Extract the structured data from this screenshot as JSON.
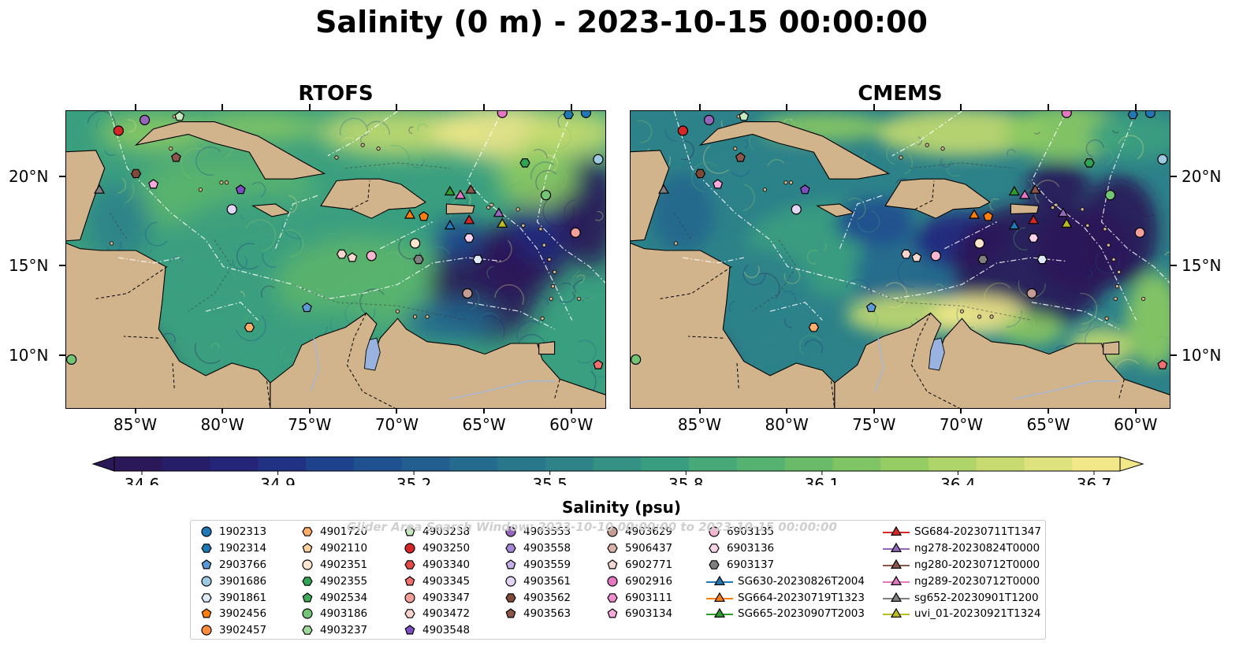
{
  "title": "Salinity (0 m) - 2023-10-15 00:00:00",
  "panels": [
    {
      "title": "RTOFS"
    },
    {
      "title": "CMEMS"
    }
  ],
  "window_note": "Glider Area Search Window: 2023-10-10 00:00:00 to 2023-10-15 00:00:00",
  "chart_data": {
    "type": "heatmap",
    "title": "Salinity (0 m) - 2023-10-15 00:00:00",
    "x_ticks": [
      "85°W",
      "80°W",
      "75°W",
      "70°W",
      "65°W",
      "60°W"
    ],
    "y_ticks": [
      "20°N",
      "15°N",
      "10°N"
    ],
    "x_tick_values": [
      -85,
      -80,
      -75,
      -70,
      -65,
      -60
    ],
    "y_tick_values": [
      20,
      15,
      10
    ],
    "xlim": [
      -89,
      -58
    ],
    "ylim": [
      7,
      23.7
    ],
    "grid": false,
    "colorbar": {
      "label": "Salinity (psu)",
      "ticks": [
        "34.6",
        "34.9",
        "35.2",
        "35.5",
        "35.8",
        "36.1",
        "36.4",
        "36.7"
      ],
      "range": [
        34.6,
        36.7
      ],
      "colormap_stops": [
        "#2a1858",
        "#23267d",
        "#1d4990",
        "#24678e",
        "#2d8289",
        "#3a9f7f",
        "#5bb56d",
        "#8bc962",
        "#c3da6e",
        "#f2e88a"
      ]
    },
    "colors": {
      "land": "#d2b48c",
      "lake": "#99b3e0"
    },
    "legend_placement": "bottom",
    "legend": [
      {
        "name": "1902313",
        "marker": "circle",
        "color": "#1f77b4"
      },
      {
        "name": "1902314",
        "marker": "hexagon",
        "color": "#1f77b4"
      },
      {
        "name": "2903766",
        "marker": "pentagon",
        "color": "#5a9bd5"
      },
      {
        "name": "3901686",
        "marker": "circle",
        "color": "#9ecae1"
      },
      {
        "name": "3901861",
        "marker": "hexagon",
        "color": "#deebf7"
      },
      {
        "name": "3902456",
        "marker": "pentagon",
        "color": "#ff7f0e"
      },
      {
        "name": "3902457",
        "marker": "circle",
        "color": "#fd8d3c"
      },
      {
        "name": "4901720",
        "marker": "hexagon",
        "color": "#fdae6b"
      },
      {
        "name": "4902110",
        "marker": "pentagon",
        "color": "#fdd0a2"
      },
      {
        "name": "4902351",
        "marker": "circle",
        "color": "#fee6ce"
      },
      {
        "name": "4902355",
        "marker": "hexagon",
        "color": "#31a354"
      },
      {
        "name": "4902534",
        "marker": "pentagon",
        "color": "#41ab5d"
      },
      {
        "name": "4903186",
        "marker": "circle",
        "color": "#74c476"
      },
      {
        "name": "4903237",
        "marker": "hexagon",
        "color": "#a1d99b"
      },
      {
        "name": "4903238",
        "marker": "pentagon",
        "color": "#c7e9c0"
      },
      {
        "name": "4903250",
        "marker": "circle",
        "color": "#d62728"
      },
      {
        "name": "4903340",
        "marker": "hexagon",
        "color": "#e34a4a"
      },
      {
        "name": "4903345",
        "marker": "pentagon",
        "color": "#f07070"
      },
      {
        "name": "4903347",
        "marker": "circle",
        "color": "#f4a09a"
      },
      {
        "name": "4903472",
        "marker": "hexagon",
        "color": "#fcd5cf"
      },
      {
        "name": "4903548",
        "marker": "pentagon",
        "color": "#7b4fbf"
      },
      {
        "name": "4903553",
        "marker": "circle",
        "color": "#9467bd"
      },
      {
        "name": "4903558",
        "marker": "hexagon",
        "color": "#a589d6"
      },
      {
        "name": "4903559",
        "marker": "pentagon",
        "color": "#c5b0e8"
      },
      {
        "name": "4903561",
        "marker": "circle",
        "color": "#e2d6f5"
      },
      {
        "name": "4903562",
        "marker": "hexagon",
        "color": "#7f4a3a"
      },
      {
        "name": "4903563",
        "marker": "pentagon",
        "color": "#8c564b"
      },
      {
        "name": "4903629",
        "marker": "circle",
        "color": "#c49c94"
      },
      {
        "name": "5906437",
        "marker": "hexagon",
        "color": "#d9b3a8"
      },
      {
        "name": "6902771",
        "marker": "pentagon",
        "color": "#f7d8d0"
      },
      {
        "name": "6902916",
        "marker": "circle",
        "color": "#e377c2"
      },
      {
        "name": "6903111",
        "marker": "hexagon",
        "color": "#f08ed0"
      },
      {
        "name": "6903134",
        "marker": "pentagon",
        "color": "#f7a8dc"
      },
      {
        "name": "6903135",
        "marker": "circle",
        "color": "#f7b6d2"
      },
      {
        "name": "6903136",
        "marker": "hexagon",
        "color": "#fbd3ea"
      },
      {
        "name": "6903137",
        "marker": "hexagon",
        "color": "#7f7f7f"
      },
      {
        "name": "SG630-20230826T2004",
        "marker": "triangle",
        "color": "#1f77b4"
      },
      {
        "name": "SG664-20230719T1323",
        "marker": "triangle",
        "color": "#ff7f0e"
      },
      {
        "name": "SG665-20230907T2003",
        "marker": "triangle",
        "color": "#2ca02c"
      },
      {
        "name": "SG684-20230711T1347",
        "marker": "triangle",
        "color": "#d62728"
      },
      {
        "name": "ng278-20230824T0000",
        "marker": "triangle",
        "color": "#9467bd"
      },
      {
        "name": "ng280-20230712T0000",
        "marker": "triangle",
        "color": "#8c564b"
      },
      {
        "name": "ng289-20230712T0000",
        "marker": "triangle",
        "color": "#e377c2"
      },
      {
        "name": "sg652-20230901T1200",
        "marker": "triangle",
        "color": "#7f7f7f"
      },
      {
        "name": "uvi_01-20230921T1324",
        "marker": "triangle",
        "color": "#bcbd22"
      }
    ],
    "platforms": [
      {
        "name": "1902313",
        "lon": -59.2,
        "lat": 23.6
      },
      {
        "name": "1902314",
        "lon": -60.2,
        "lat": 23.5
      },
      {
        "name": "3901686",
        "lon": -58.5,
        "lat": 21.0
      },
      {
        "name": "3901861",
        "lon": -65.4,
        "lat": 15.4
      },
      {
        "name": "4903250",
        "lon": -86.0,
        "lat": 22.6
      },
      {
        "name": "4903553",
        "lon": -84.5,
        "lat": 23.2
      },
      {
        "name": "4903238",
        "lon": -82.5,
        "lat": 23.4
      },
      {
        "name": "4902355",
        "lon": -62.7,
        "lat": 20.8
      },
      {
        "name": "4903186",
        "lon": -61.5,
        "lat": 19.0
      },
      {
        "name": "4903563",
        "lon": -82.7,
        "lat": 21.1
      },
      {
        "name": "4903562",
        "lon": -85.0,
        "lat": 20.2
      },
      {
        "name": "6903134",
        "lon": -84.0,
        "lat": 19.6
      },
      {
        "name": "4903548",
        "lon": -79.0,
        "lat": 19.3
      },
      {
        "name": "4903561",
        "lon": -79.5,
        "lat": 18.2
      },
      {
        "name": "6902916",
        "lon": -64.0,
        "lat": 23.6
      },
      {
        "name": "4903345",
        "lon": -58.5,
        "lat": 9.5
      },
      {
        "name": "4903347",
        "lon": -59.8,
        "lat": 16.9
      },
      {
        "name": "6903136",
        "lon": -65.9,
        "lat": 16.6
      },
      {
        "name": "6903135",
        "lon": -71.5,
        "lat": 15.6
      },
      {
        "name": "6902771",
        "lon": -72.6,
        "lat": 15.5
      },
      {
        "name": "4903472",
        "lon": -73.2,
        "lat": 15.7
      },
      {
        "name": "4903629",
        "lon": -66.0,
        "lat": 13.5
      },
      {
        "name": "4902351",
        "lon": -69.0,
        "lat": 16.3
      },
      {
        "name": "6903137",
        "lon": -68.8,
        "lat": 15.4
      },
      {
        "name": "2903766",
        "lon": -75.2,
        "lat": 12.7
      },
      {
        "name": "4901720",
        "lon": -78.5,
        "lat": 11.6
      },
      {
        "name": "4903186",
        "lon": -88.7,
        "lat": 9.8
      },
      {
        "name": "3902456",
        "lon": -68.5,
        "lat": 17.8
      },
      {
        "name": "SG630-20230826T2004",
        "lon": -67.0,
        "lat": 17.3
      },
      {
        "name": "SG664-20230719T1323",
        "lon": -69.3,
        "lat": 17.9
      },
      {
        "name": "SG665-20230907T2003",
        "lon": -67.0,
        "lat": 19.2
      },
      {
        "name": "SG684-20230711T1347",
        "lon": -65.9,
        "lat": 17.6
      },
      {
        "name": "ng278-20230824T0000",
        "lon": -64.2,
        "lat": 18.0
      },
      {
        "name": "ng280-20230712T0000",
        "lon": -65.8,
        "lat": 19.3
      },
      {
        "name": "ng289-20230712T0000",
        "lon": -66.4,
        "lat": 19.0
      },
      {
        "name": "sg652-20230901T1200",
        "lon": -87.1,
        "lat": 19.3
      },
      {
        "name": "uvi_01-20230921T1324",
        "lon": -64.0,
        "lat": 17.4
      }
    ]
  }
}
